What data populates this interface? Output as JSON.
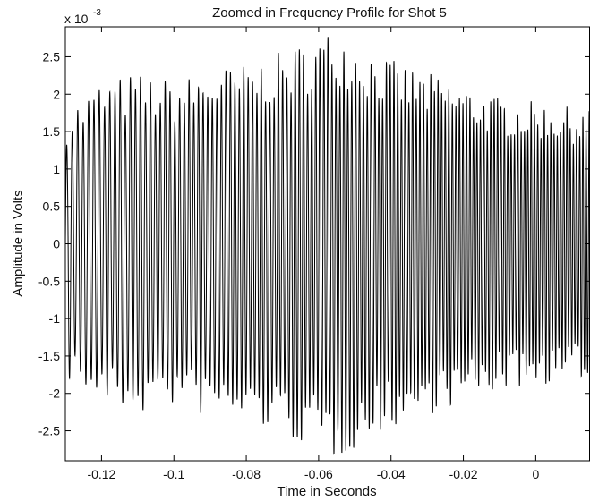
{
  "chart_data": {
    "type": "line",
    "title": "Zoomed in Frequency Profile for Shot 5",
    "xlabel": "Time in Seconds",
    "ylabel": "Amplitude in Volts",
    "y_multiplier_base": "x 10",
    "y_multiplier_exponent": "-3",
    "xlim": [
      -0.13,
      0.015
    ],
    "ylim": [
      -0.0029,
      0.0029
    ],
    "x_ticks": [
      -0.12,
      -0.1,
      -0.08,
      -0.06,
      -0.04,
      -0.02,
      0
    ],
    "x_tick_labels": [
      "-0.12",
      "-0.1",
      "-0.08",
      "-0.06",
      "-0.04",
      "-0.02",
      "0"
    ],
    "y_ticks": [
      -0.0025,
      -0.002,
      -0.0015,
      -0.001,
      -0.0005,
      0,
      0.0005,
      0.001,
      0.0015,
      0.002,
      0.0025
    ],
    "y_tick_labels": [
      "-2.5",
      "-2",
      "-1.5",
      "-1",
      "-0.5",
      "0",
      "0.5",
      "1",
      "1.5",
      "2",
      "2.5"
    ],
    "grid": false,
    "series_color": "#000000",
    "signal": {
      "description_of_shape": "dense oscillation",
      "start_frequency_hz": 650,
      "end_frequency_hz": 1150,
      "envelope_points": {
        "x": [
          -0.13,
          -0.12,
          -0.11,
          -0.1,
          -0.09,
          -0.08,
          -0.07,
          -0.06,
          -0.055,
          -0.05,
          -0.04,
          -0.03,
          -0.02,
          -0.01,
          0,
          0.015
        ],
        "amplitude": [
          0.0016,
          0.00195,
          0.00205,
          0.00195,
          0.0021,
          0.00215,
          0.0023,
          0.0025,
          0.0026,
          0.00245,
          0.0022,
          0.00205,
          0.0019,
          0.00175,
          0.0017,
          0.0016
        ]
      }
    }
  }
}
